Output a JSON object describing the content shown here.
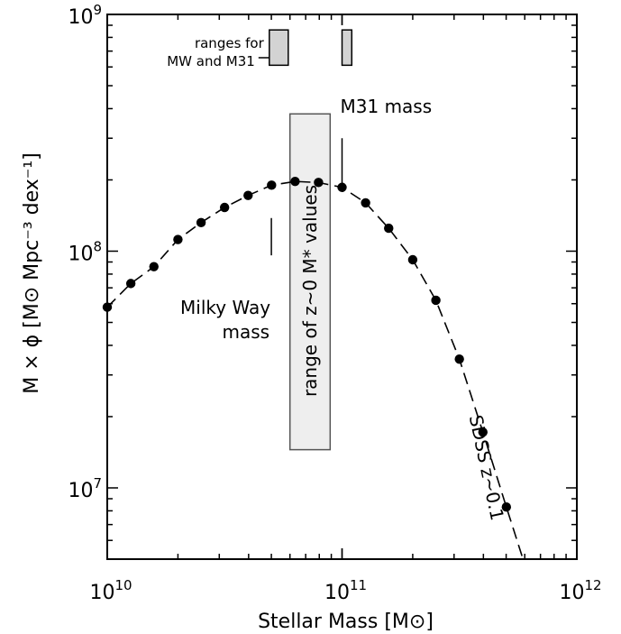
{
  "chart_data": {
    "type": "line",
    "xscale": "log",
    "yscale": "log",
    "xlim": [
      10000000000.0,
      1000000000000.0
    ],
    "ylim": [
      5000000.0,
      1000000000.0
    ],
    "xlabel": "Stellar Mass [M⊙]",
    "ylabel": "M × ϕ [M⊙ Mpc⁻³ dex⁻¹]",
    "x_ticks": [
      {
        "value": 10000000000.0,
        "base": "10",
        "exp": "10"
      },
      {
        "value": 100000000000.0,
        "base": "10",
        "exp": "11"
      },
      {
        "value": 1000000000000.0,
        "base": "10",
        "exp": "12"
      }
    ],
    "y_ticks": [
      {
        "value": 10000000.0,
        "base": "10",
        "exp": "7"
      },
      {
        "value": 100000000.0,
        "base": "10",
        "exp": "8"
      },
      {
        "value": 1000000000.0,
        "base": "10",
        "exp": "9"
      }
    ],
    "series": [
      {
        "name": "SDSS z~0.1",
        "style": "dashed line with filled circles",
        "color": "#000000",
        "x": [
          10000000000.0,
          12600000000.0,
          15800000000.0,
          20000000000.0,
          25100000000.0,
          31600000000.0,
          39800000000.0,
          50100000000.0,
          63100000000.0,
          79400000000.0,
          100000000000.0,
          126000000000.0,
          158000000000.0,
          200000000000.0,
          251000000000.0,
          316000000000.0,
          398000000000.0,
          501000000000.0
        ],
        "y": [
          58000000.0,
          73000000.0,
          86000000.0,
          112000000.0,
          132000000.0,
          153000000.0,
          172000000.0,
          190000000.0,
          197000000.0,
          195000000.0,
          186000000.0,
          160000000.0,
          125000000.0,
          92000000.0,
          62000000.0,
          35000000.0,
          17200000.0,
          8300000.0
        ],
        "curve_x": [
          10000000000.0,
          12600000000.0,
          15800000000.0,
          20000000000.0,
          25100000000.0,
          31600000000.0,
          39800000000.0,
          50100000000.0,
          63100000000.0,
          79400000000.0,
          100000000000.0,
          126000000000.0,
          158000000000.0,
          200000000000.0,
          251000000000.0,
          316000000000.0,
          398000000000.0,
          501000000000.0,
          590000000000.0
        ],
        "curve_y": [
          58000000.0,
          73000000.0,
          86000000.0,
          112000000.0,
          132000000.0,
          153000000.0,
          172000000.0,
          190000000.0,
          197000000.0,
          195000000.0,
          186000000.0,
          160000000.0,
          125000000.0,
          92000000.0,
          62000000.0,
          35000000.0,
          17200000.0,
          8300000.0,
          5000000.0
        ],
        "label": "SDSS z~0.1"
      }
    ],
    "bands": [
      {
        "name": "range of z~0 M* values",
        "x_range": [
          60000000000.0,
          89000000000.0
        ],
        "y_range": [
          14500000.0,
          380000000.0
        ],
        "fill": "#eeeeee"
      }
    ],
    "range_boxes": [
      {
        "x_range": [
          49000000000.0,
          59000000000.0
        ],
        "y_range": [
          610000000.0,
          860000000.0
        ],
        "fill": "#d3d3d3"
      },
      {
        "x_range": [
          100000000000.0,
          110000000000.0
        ],
        "y_range": [
          610000000.0,
          860000000.0
        ],
        "fill": "#d3d3d3"
      }
    ],
    "markers": [
      {
        "label_lines": [
          "Milky Way",
          "mass"
        ],
        "x": 50000000000.0,
        "y_range": [
          96000000.0,
          138000000.0
        ]
      },
      {
        "label_lines": [
          "M31 mass"
        ],
        "x": 100000000000.0,
        "y_range": [
          188000000.0,
          300000000.0
        ]
      }
    ],
    "annotations": {
      "ranges_label_lines": [
        "ranges for",
        "MW and M31"
      ],
      "band_label": "range of z~0 M* values",
      "series_label": "SDSS z~0.1"
    },
    "grid": false,
    "legend": "none"
  }
}
